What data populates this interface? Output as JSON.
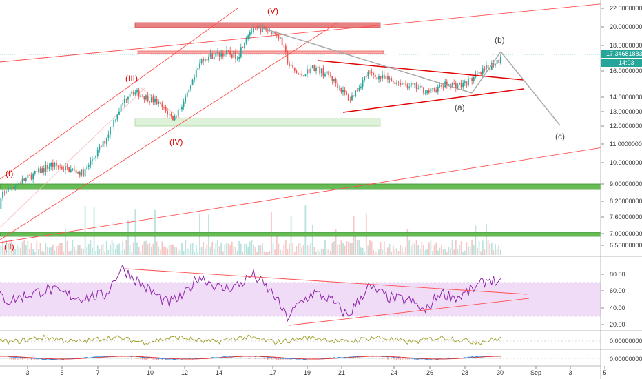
{
  "chart_data": {
    "type": "candlestick",
    "price_scale": {
      "ticks": [
        "22.00000000",
        "20.00000000",
        "18.00000000",
        "16.00000000",
        "14.00000000",
        "13.00000000",
        "12.00000000",
        "11.00000000",
        "10.00000000",
        "9.00000000",
        "8.20000000",
        "7.60000000",
        "7.00000000",
        "6.50000000"
      ],
      "values": [
        22.0,
        20.0,
        18.0,
        16.0,
        14.0,
        13.0,
        12.0,
        11.0,
        10.0,
        9.0,
        8.2,
        7.6,
        7.0,
        6.5
      ]
    },
    "last_price": "17.34681883",
    "countdown": "14:03",
    "x_ticks": [
      "3",
      "5",
      "7",
      "10",
      "12",
      "14",
      "17",
      "19",
      "21",
      "24",
      "26",
      "28",
      "30",
      "Sep",
      "3",
      "5"
    ],
    "wave_labels": {
      "I": "(I)",
      "II": "(II)",
      "III": "(III)",
      "IV": "(IV)",
      "V": "(V)",
      "a": "(a)",
      "b": "(b)",
      "c": "(c)"
    },
    "price_path_anchors": [
      {
        "day": 1.8,
        "price": 6.7
      },
      {
        "day": 2.3,
        "price": 8.6
      },
      {
        "day": 3.5,
        "price": 9.2
      },
      {
        "day": 5.0,
        "price": 9.9
      },
      {
        "day": 6.8,
        "price": 9.5
      },
      {
        "day": 8.0,
        "price": 11.2
      },
      {
        "day": 8.8,
        "price": 13.2
      },
      {
        "day": 9.4,
        "price": 14.5
      },
      {
        "day": 10.8,
        "price": 13.7
      },
      {
        "day": 11.8,
        "price": 12.5
      },
      {
        "day": 12.6,
        "price": 14.2
      },
      {
        "day": 13.4,
        "price": 17.0
      },
      {
        "day": 14.5,
        "price": 17.4
      },
      {
        "day": 15.4,
        "price": 17.2
      },
      {
        "day": 16.0,
        "price": 19.5
      },
      {
        "day": 16.8,
        "price": 19.8
      },
      {
        "day": 17.6,
        "price": 19.2
      },
      {
        "day": 18.2,
        "price": 16.5
      },
      {
        "day": 18.8,
        "price": 15.6
      },
      {
        "day": 19.6,
        "price": 16.3
      },
      {
        "day": 20.5,
        "price": 15.6
      },
      {
        "day": 21.6,
        "price": 13.8
      },
      {
        "day": 22.6,
        "price": 15.8
      },
      {
        "day": 23.8,
        "price": 15.3
      },
      {
        "day": 25.0,
        "price": 14.9
      },
      {
        "day": 26.0,
        "price": 14.4
      },
      {
        "day": 27.0,
        "price": 15.0
      },
      {
        "day": 27.8,
        "price": 14.9
      },
      {
        "day": 28.8,
        "price": 15.7
      },
      {
        "day": 29.4,
        "price": 16.4
      },
      {
        "day": 29.9,
        "price": 16.9
      },
      {
        "day": 30.0,
        "price": 17.35
      }
    ],
    "rsi": {
      "ticks": [
        "80.00",
        "60.00",
        "40.00",
        "20.00"
      ],
      "values": [
        80,
        60,
        40,
        20
      ],
      "band": [
        30,
        70
      ],
      "anchors": [
        {
          "day": 1.8,
          "v": 60
        },
        {
          "day": 2.6,
          "v": 48
        },
        {
          "day": 3.6,
          "v": 55
        },
        {
          "day": 4.8,
          "v": 62
        },
        {
          "day": 6.5,
          "v": 52
        },
        {
          "day": 8.0,
          "v": 55
        },
        {
          "day": 8.9,
          "v": 88
        },
        {
          "day": 10.0,
          "v": 68
        },
        {
          "day": 11.5,
          "v": 45
        },
        {
          "day": 12.4,
          "v": 55
        },
        {
          "day": 13.2,
          "v": 78
        },
        {
          "day": 14.5,
          "v": 62
        },
        {
          "day": 15.5,
          "v": 68
        },
        {
          "day": 16.2,
          "v": 80
        },
        {
          "day": 17.4,
          "v": 55
        },
        {
          "day": 18.1,
          "v": 28
        },
        {
          "day": 18.8,
          "v": 45
        },
        {
          "day": 19.6,
          "v": 58
        },
        {
          "day": 20.5,
          "v": 50
        },
        {
          "day": 21.5,
          "v": 30
        },
        {
          "day": 22.6,
          "v": 65
        },
        {
          "day": 23.8,
          "v": 52
        },
        {
          "day": 25.0,
          "v": 48
        },
        {
          "day": 25.8,
          "v": 35
        },
        {
          "day": 26.6,
          "v": 58
        },
        {
          "day": 27.6,
          "v": 52
        },
        {
          "day": 28.6,
          "v": 64
        },
        {
          "day": 29.4,
          "v": 75
        },
        {
          "day": 30.0,
          "v": 68
        }
      ]
    },
    "osc1": {
      "ticks": [
        "0.00000000"
      ]
    },
    "osc2": {
      "ticks": [
        "0.00000000"
      ]
    }
  }
}
